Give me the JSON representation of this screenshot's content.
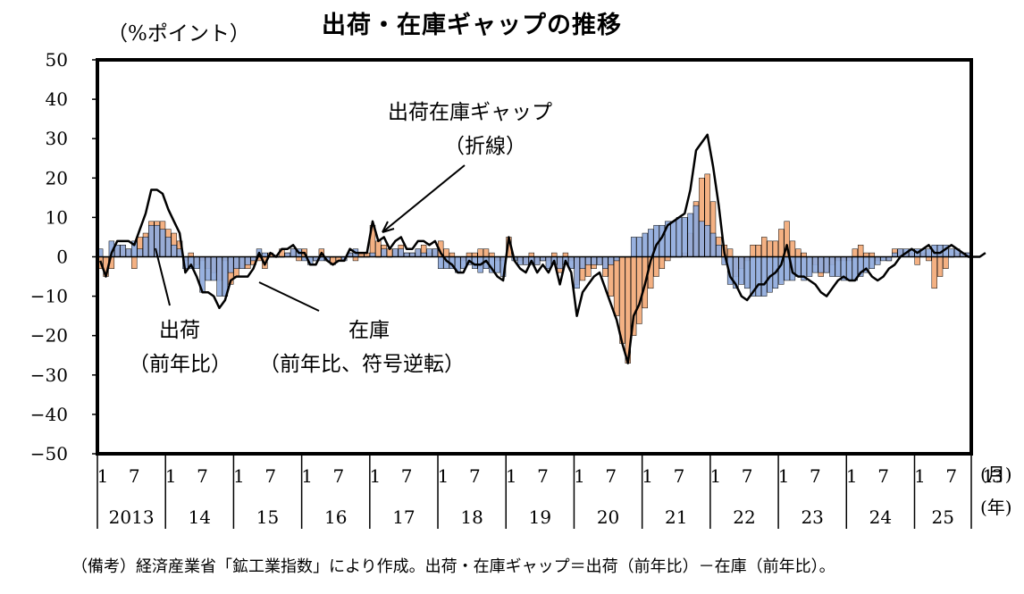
{
  "title": "出荷・在庫ギャップの推移",
  "unit_label": "（%ポイント）",
  "source_note": "（備考）経済産業省「鉱工業指数」により作成。出荷・在庫ギャップ＝出荷（前年比）－在庫（前年比）。",
  "annotations": {
    "gap_line_1": "出荷在庫ギャップ",
    "gap_line_2": "（折線）",
    "shipments_1": "出荷",
    "shipments_2": "（前年比）",
    "inventory_1": "在庫",
    "inventory_2": "（前年比、符号逆転）"
  },
  "axis_suffix": {
    "month": "(月)",
    "year": "(年)"
  },
  "colors": {
    "shipments": "#f4b183",
    "inventory": "#8faadc",
    "gap_line": "#000000",
    "bar_edge": "#000000"
  },
  "chart_data": {
    "type": "bar",
    "title": "出荷・在庫ギャップの推移",
    "ylabel": "（%ポイント）",
    "ylim": [
      -50,
      50
    ],
    "yticks": [
      50,
      40,
      30,
      20,
      10,
      0,
      -10,
      -20,
      -30,
      -40,
      -50
    ],
    "grid": false,
    "x_month_ticks": [
      "1",
      "7",
      "1",
      "7",
      "1",
      "7",
      "1",
      "7",
      "1",
      "7",
      "1",
      "7",
      "1",
      "7",
      "1",
      "7",
      "1",
      "7",
      "1",
      "7",
      "1",
      "7",
      "1",
      "7",
      "1",
      "7",
      "1",
      "3"
    ],
    "x_year_labels": [
      "2013",
      "14",
      "15",
      "16",
      "17",
      "18",
      "19",
      "20",
      "21",
      "22",
      "23",
      "24",
      "25"
    ],
    "x_start": "2013-01",
    "x_end": "2025-03",
    "series": [
      {
        "name": "出荷（前年比）",
        "type": "bar",
        "values": [
          -3,
          -5,
          -3,
          2,
          3,
          2,
          -3,
          5,
          6,
          9,
          9,
          9,
          7,
          6,
          4,
          -1,
          1,
          -2,
          -1,
          -3,
          -4,
          -6,
          -1,
          -7,
          -5,
          -3,
          -3,
          -2,
          -1,
          -3,
          1,
          0,
          2,
          1,
          2,
          -1,
          2,
          0,
          -1,
          2,
          -1,
          -2,
          -1,
          0,
          1,
          -1,
          1,
          1,
          8,
          4,
          3,
          2,
          2,
          3,
          1,
          1,
          2,
          3,
          1,
          2,
          4,
          2,
          1,
          0,
          -1,
          1,
          1,
          2,
          2,
          1,
          -1,
          -1,
          5,
          0,
          -1,
          -2,
          1,
          -2,
          -1,
          -1,
          1,
          -4,
          1,
          -1,
          -7,
          -6,
          -5,
          -3,
          -2,
          -5,
          -10,
          -15,
          -22,
          -27,
          -20,
          -17,
          -13,
          -8,
          -5,
          -3,
          -1,
          0,
          0,
          1,
          6,
          14,
          20,
          21,
          14,
          5,
          3,
          2,
          -5,
          -3,
          -1,
          3,
          3,
          5,
          4,
          4,
          7,
          9,
          4,
          2,
          1,
          0,
          -2,
          -5,
          -4,
          -2,
          -1,
          -1,
          -1,
          2,
          3,
          1,
          1,
          -1,
          0,
          -1,
          2,
          2,
          1,
          1,
          -2,
          1,
          -1,
          -8,
          -5,
          -3,
          0,
          1,
          1,
          1
        ],
        "color": "#f4b183"
      },
      {
        "name": "在庫（前年比、符号逆転）",
        "type": "bar",
        "values": [
          2,
          0,
          4,
          3,
          3,
          2,
          4,
          2,
          5,
          8,
          8,
          7,
          5,
          3,
          2,
          -3,
          -3,
          -3,
          -9,
          -6,
          -6,
          -10,
          -10,
          -4,
          -3,
          -3,
          -2,
          -1,
          2,
          1,
          0,
          0,
          0,
          1,
          2,
          2,
          -1,
          -2,
          -1,
          -1,
          -1,
          0,
          0,
          -1,
          1,
          2,
          0,
          0,
          1,
          0,
          2,
          0,
          2,
          2,
          1,
          1,
          2,
          1,
          2,
          2,
          -3,
          -3,
          -3,
          -4,
          -3,
          -2,
          -3,
          -4,
          -3,
          -4,
          -4,
          -5,
          0,
          -1,
          -2,
          -2,
          -2,
          -2,
          -1,
          -3,
          -2,
          -3,
          -2,
          -3,
          -8,
          -3,
          -2,
          -2,
          -2,
          -3,
          -2,
          -1,
          0,
          0,
          5,
          5,
          6,
          7,
          8,
          8,
          9,
          9,
          10,
          10,
          11,
          13,
          9,
          8,
          6,
          3,
          -2,
          -7,
          -8,
          -7,
          -8,
          -10,
          -10,
          -10,
          -9,
          -8,
          -7,
          -6,
          -6,
          -5,
          -6,
          -5,
          -4,
          -4,
          -4,
          -5,
          -5,
          -6,
          -6,
          -6,
          -5,
          -4,
          -3,
          -2,
          -1,
          -1,
          1,
          2,
          2,
          2,
          2,
          2,
          2,
          3,
          3,
          3,
          2,
          2,
          1,
          1
        ],
        "color": "#8faadc"
      },
      {
        "name": "出荷在庫ギャップ",
        "type": "line",
        "values": [
          -1,
          -5,
          1,
          4,
          4,
          4,
          3,
          7,
          11,
          17,
          17,
          16,
          12,
          9,
          6,
          -4,
          -2,
          -5,
          -9,
          -9,
          -10,
          -13,
          -11,
          -6,
          -5,
          -5,
          -5,
          -3,
          1,
          -2,
          1,
          0,
          2,
          2,
          3,
          1,
          1,
          -2,
          -2,
          1,
          -1,
          -2,
          -1,
          -1,
          2,
          1,
          1,
          1,
          9,
          4,
          5,
          2,
          4,
          5,
          2,
          2,
          4,
          4,
          3,
          4,
          1,
          -1,
          -2,
          -4,
          -4,
          -1,
          -2,
          -2,
          -1,
          -3,
          -5,
          -6,
          5,
          -1,
          -3,
          -4,
          -1,
          -4,
          -2,
          -4,
          -1,
          -7,
          -1,
          -4,
          -15,
          -9,
          -7,
          -5,
          -4,
          -8,
          -12,
          -16,
          -22,
          -27,
          -15,
          -12,
          -7,
          -1,
          3,
          5,
          8,
          9,
          10,
          11,
          17,
          27,
          29,
          31,
          23,
          13,
          1,
          -5,
          -7,
          -10,
          -11,
          -9,
          -7,
          -7,
          -5,
          -4,
          -2,
          3,
          -4,
          -5,
          -5,
          -6,
          -7,
          -9,
          -10,
          -8,
          -6,
          -5,
          -6,
          -6,
          -4,
          -3,
          -5,
          -6,
          -5,
          -3,
          -2,
          0,
          1,
          2,
          1,
          2,
          3,
          1,
          1,
          2,
          3,
          2,
          1,
          0,
          0,
          0,
          1
        ]
      }
    ]
  }
}
